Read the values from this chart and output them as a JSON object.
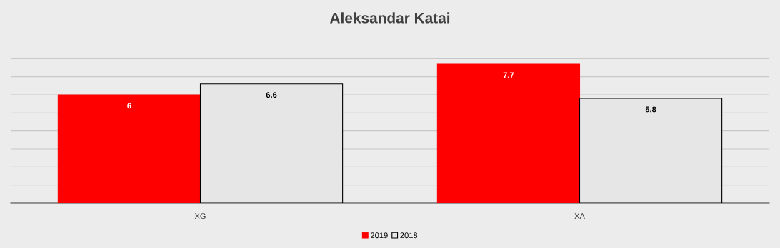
{
  "chart_data": {
    "type": "bar",
    "title": "Aleksandar Katai",
    "categories": [
      "XG",
      "XA"
    ],
    "series": [
      {
        "name": "2019",
        "color": "#ff0000",
        "values": [
          6,
          7.7
        ]
      },
      {
        "name": "2018",
        "color": "#e6e6e6",
        "values": [
          6.6,
          5.8
        ]
      }
    ],
    "ylim": [
      0,
      9
    ],
    "yticks": [
      {
        "value": 0,
        "label": null
      },
      {
        "value": 1,
        "label": null
      },
      {
        "value": 2,
        "label": null
      },
      {
        "value": 3,
        "label": null
      },
      {
        "value": 4,
        "label": null
      },
      {
        "value": 5,
        "label": null
      },
      {
        "value": 6,
        "label": null
      },
      {
        "value": 7,
        "label": null
      },
      {
        "value": 8,
        "label": null
      },
      {
        "value": 9,
        "label": null
      }
    ],
    "grid": "y",
    "legend": "bottom",
    "data_labels": true
  }
}
